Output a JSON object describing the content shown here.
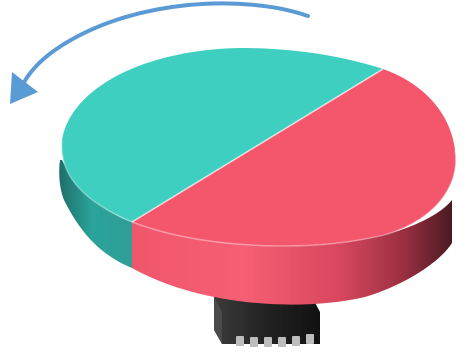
{
  "figure": {
    "elements": [
      "rotation-arrow-icon",
      "bicolor-disc",
      "chip-icon"
    ],
    "rotation_direction": "counter-clockwise"
  },
  "colors": {
    "background": "#ffffff",
    "teal_top": "#3ecfc0",
    "red_top": "#f4566c",
    "arrow": "#5b9bd5",
    "chip": "#2b2b2b",
    "chip_pins": "#bdbdbd"
  }
}
